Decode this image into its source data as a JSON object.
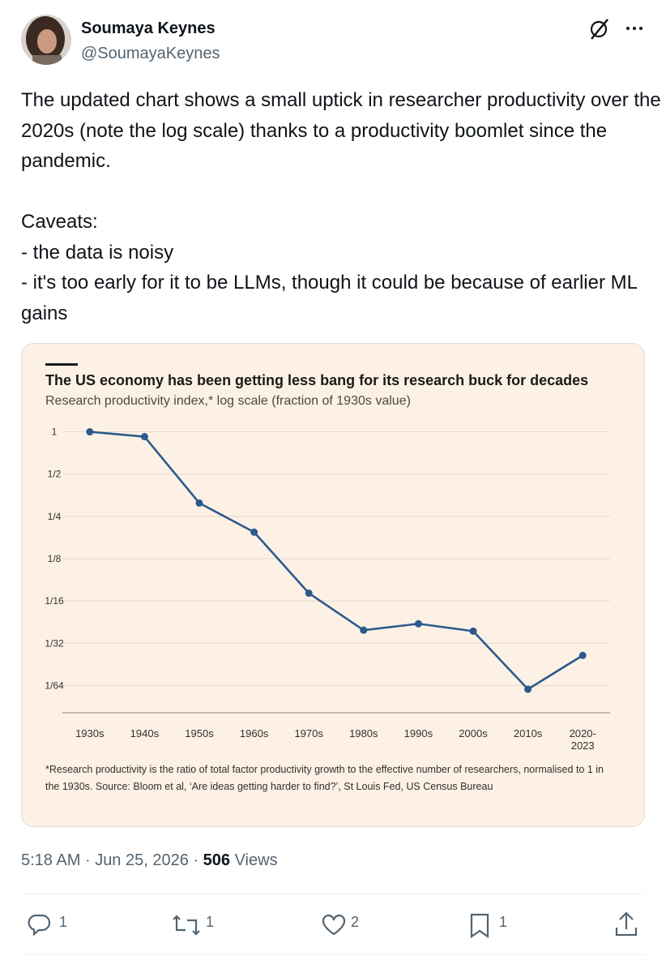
{
  "author": {
    "name": "Soumaya Keynes",
    "handle": "@SoumayaKeynes"
  },
  "tweet": {
    "paragraphs": [
      "The updated chart shows a small uptick in researcher productivity over the 2020s (note the log scale) thanks to a productivity boomlet since the pandemic.",
      "Caveats:",
      "- the data is noisy",
      "- it's too early for it to be LLMs, though it could be because of earlier ML gains"
    ]
  },
  "chart_data": {
    "type": "line",
    "title": "The US economy has been getting less bang for its research buck for decades",
    "subtitle": "Research productivity index,* log scale (fraction of 1930s value)",
    "footnote": "*Research productivity is the ratio of total factor productivity growth to the effective number of researchers, normalised to 1 in the 1930s. Source: Bloom et al, ‘Are ideas getting harder to find?’, St Louis Fed, US Census Bureau",
    "categories": [
      "1930s",
      "1940s",
      "1950s",
      "1960s",
      "1970s",
      "1980s",
      "1990s",
      "2000s",
      "2010s",
      "2020-2023"
    ],
    "values": [
      1,
      0.923,
      0.311,
      0.193,
      0.071,
      0.0387,
      0.043,
      0.0381,
      0.0147,
      0.0256
    ],
    "color": "#2c5a8c",
    "log_scale": true,
    "grid": true,
    "ylim": [
      0.01,
      1.15
    ],
    "yticks": [
      1,
      {
        "value": 0.5,
        "label": "1/2"
      },
      {
        "value": 0.25,
        "label": "1/4"
      },
      {
        "value": 0.125,
        "label": "1/8"
      },
      {
        "value": 0.0625,
        "label": "1/16"
      },
      {
        "value": 0.03125,
        "label": "1/32"
      },
      {
        "value": 0.015625,
        "label": "1/64"
      }
    ]
  },
  "meta": {
    "time": "5:18 AM",
    "separator": "·",
    "date": "Jun 25, 2026",
    "views": 506,
    "views_label": "Views"
  },
  "actions": {
    "replies": 1,
    "reposts": 1,
    "likes": 2,
    "bookmarks": 1
  }
}
